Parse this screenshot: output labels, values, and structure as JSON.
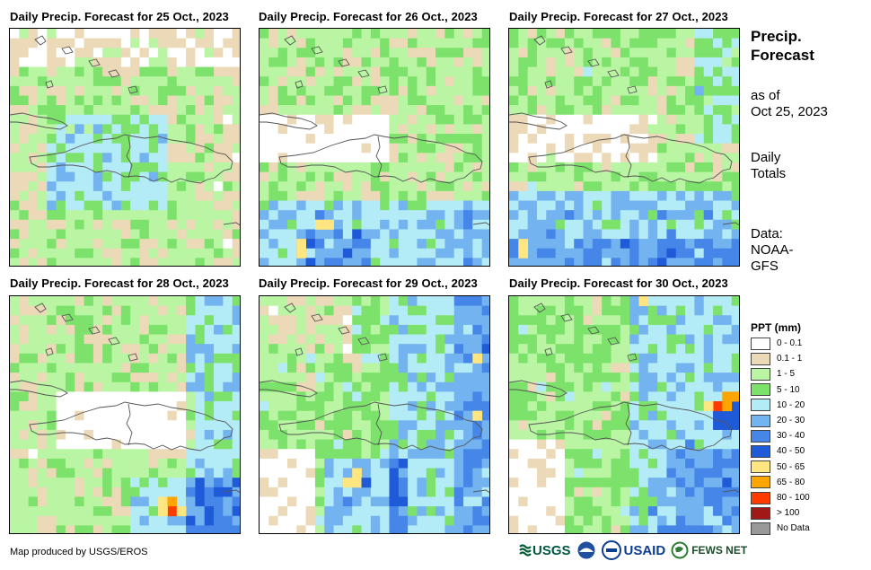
{
  "panels": [
    {
      "title": "Daily Precip. Forecast for 25 Oct., 2023"
    },
    {
      "title": "Daily Precip. Forecast for 26 Oct., 2023"
    },
    {
      "title": "Daily Precip. Forecast for 27 Oct., 2023"
    },
    {
      "title": "Daily Precip. Forecast for 28 Oct., 2023"
    },
    {
      "title": "Daily Precip. Forecast for 29 Oct., 2023"
    },
    {
      "title": "Daily Precip. Forecast for 30 Oct., 2023"
    }
  ],
  "sidebar": {
    "title_line1": "Precip.",
    "title_line2": "Forecast",
    "asof_line1": "as of",
    "asof_line2": "Oct 25, 2023",
    "totals_line1": "Daily",
    "totals_line2": "Totals",
    "data_line1": "Data:",
    "data_line2": "NOAA-",
    "data_line3": "GFS"
  },
  "legend": {
    "title": "PPT (mm)",
    "items": [
      {
        "label": "0 - 0.1",
        "color": "#ffffff"
      },
      {
        "label": "0.1 - 1",
        "color": "#ecd9b7"
      },
      {
        "label": "1 - 5",
        "color": "#b9f5a2"
      },
      {
        "label": "5 - 10",
        "color": "#7de26b"
      },
      {
        "label": "10 - 20",
        "color": "#b3ecf6"
      },
      {
        "label": "20 - 30",
        "color": "#73b3f0"
      },
      {
        "label": "30 - 40",
        "color": "#4586e8"
      },
      {
        "label": "40 - 50",
        "color": "#1f5ad8"
      },
      {
        "label": "50 - 65",
        "color": "#ffe680"
      },
      {
        "label": "65 - 80",
        "color": "#ffa500"
      },
      {
        "label": "80 - 100",
        "color": "#ff3c00"
      },
      {
        "label": "> 100",
        "color": "#a01818"
      },
      {
        "label": "No Data",
        "color": "#999999"
      }
    ]
  },
  "credit": "Map produced by USGS/EROS",
  "logos": {
    "usgs": "USGS",
    "usaid": "USAID",
    "fewsnet": "FEWS NET"
  }
}
